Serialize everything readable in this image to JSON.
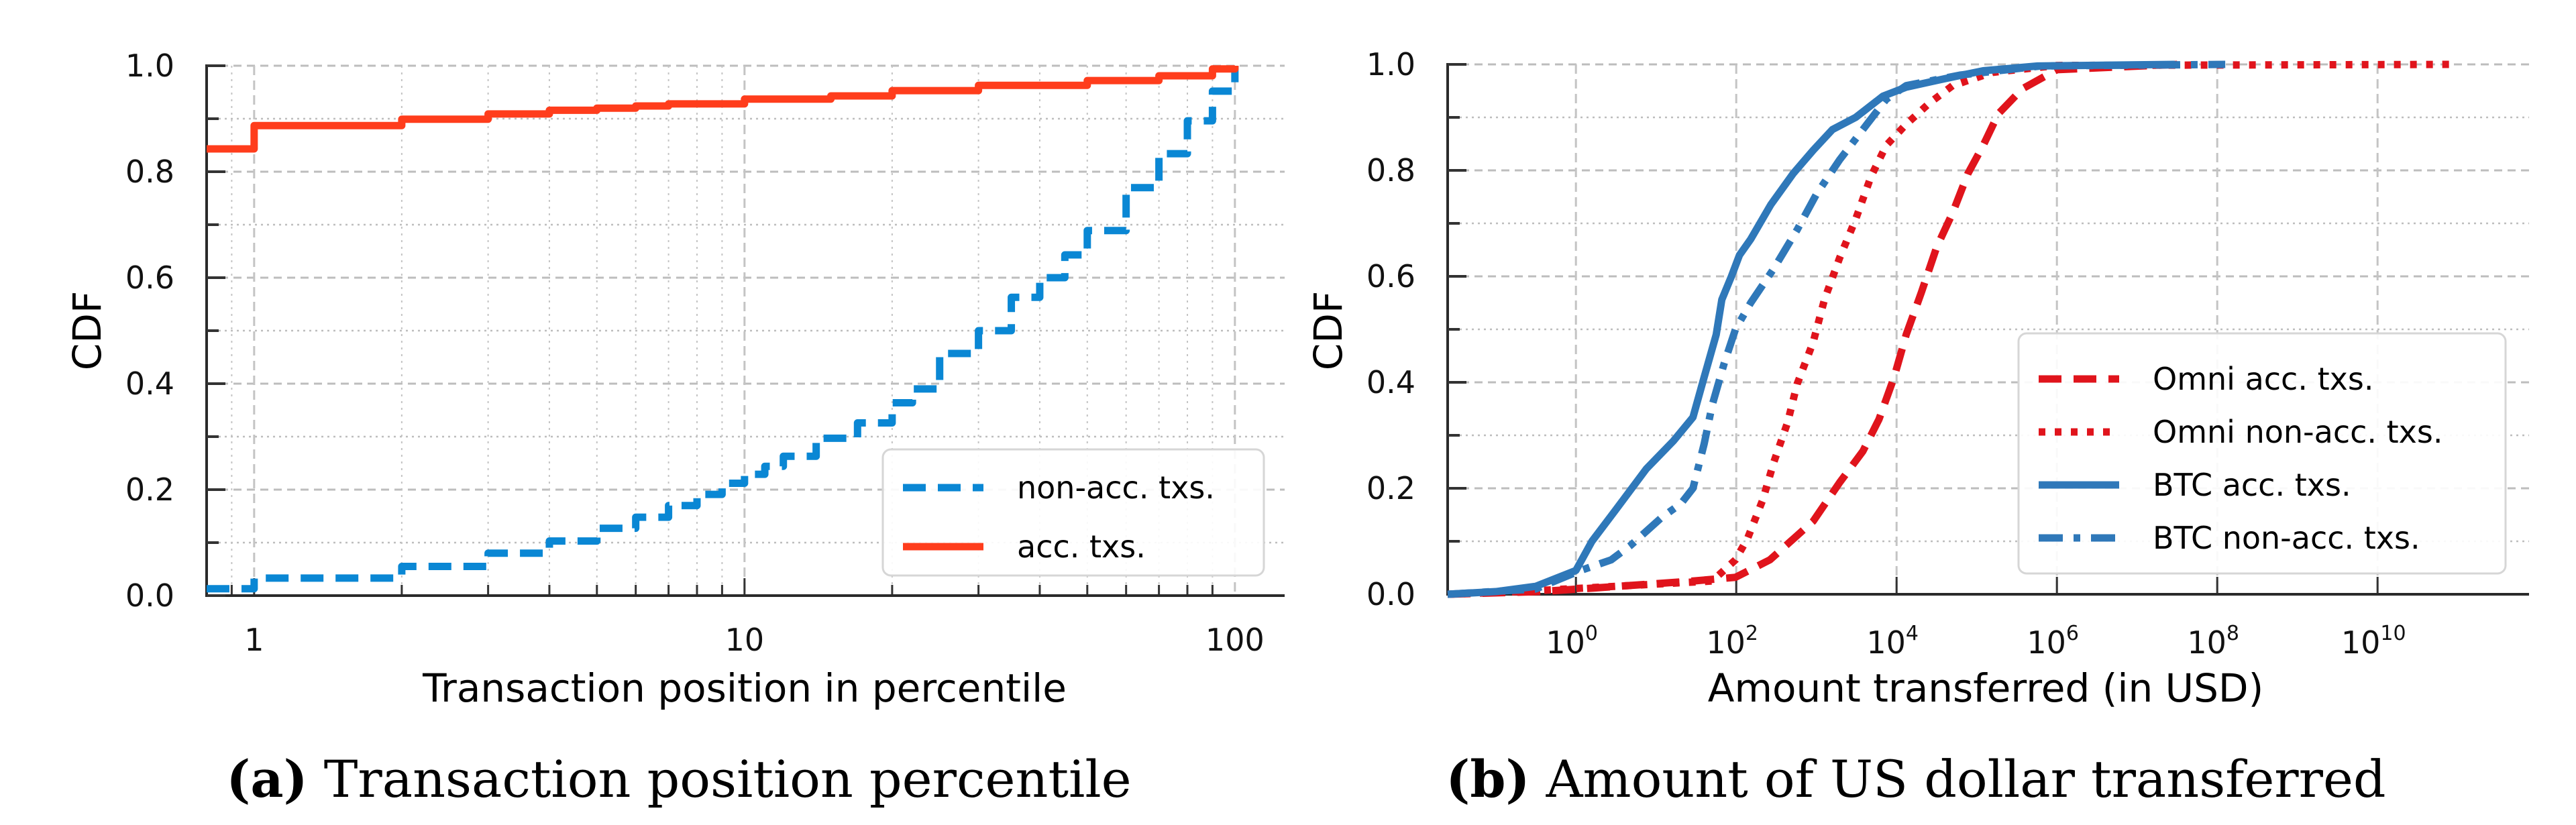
{
  "chart_data": [
    {
      "id": "a",
      "type": "line",
      "caption_tag": "(a)",
      "caption": "Transaction position percentile",
      "xlabel": "Transaction position in percentile",
      "ylabel": "CDF",
      "xscale": "log",
      "xlim": [
        0.8,
        120
      ],
      "ylim": [
        0.0,
        1.0
      ],
      "xticks": [
        {
          "value": 1,
          "label": "1"
        },
        {
          "value": 10,
          "label": "10"
        },
        {
          "value": 100,
          "label": "100"
        }
      ],
      "yticks": [
        {
          "value": 0.0,
          "label": "0.0"
        },
        {
          "value": 0.2,
          "label": "0.2"
        },
        {
          "value": 0.4,
          "label": "0.4"
        },
        {
          "value": 0.6,
          "label": "0.6"
        },
        {
          "value": 0.8,
          "label": "0.8"
        },
        {
          "value": 1.0,
          "label": "1.0"
        }
      ],
      "grid": true,
      "legend_position": "lower-right",
      "series": [
        {
          "name": "non-acc. txs.",
          "color": "#0a87d4",
          "style": "dashed",
          "step": true,
          "x": [
            0.8,
            1,
            2,
            3,
            4,
            5,
            6,
            7,
            8,
            9,
            10,
            11,
            12,
            14,
            17,
            20,
            22,
            25,
            30,
            35,
            40,
            45,
            50,
            60,
            70,
            80,
            90,
            100
          ],
          "y": [
            0.013,
            0.033,
            0.055,
            0.08,
            0.103,
            0.127,
            0.148,
            0.17,
            0.191,
            0.212,
            0.229,
            0.244,
            0.263,
            0.297,
            0.326,
            0.364,
            0.39,
            0.457,
            0.5,
            0.563,
            0.6,
            0.643,
            0.689,
            0.77,
            0.834,
            0.896,
            0.952,
            1.0
          ]
        },
        {
          "name": "acc. txs.",
          "color": "#ff3d1c",
          "style": "solid",
          "step": true,
          "x": [
            0.8,
            1,
            2,
            3,
            4,
            5,
            6,
            7,
            10,
            15,
            20,
            30,
            50,
            70,
            90,
            100
          ],
          "y": [
            0.843,
            0.887,
            0.899,
            0.909,
            0.916,
            0.92,
            0.924,
            0.928,
            0.937,
            0.943,
            0.953,
            0.963,
            0.972,
            0.981,
            0.994,
            1.0
          ]
        }
      ]
    },
    {
      "id": "b",
      "type": "line",
      "caption_tag": "(b)",
      "caption": "Amount of US dollar transferred",
      "xlabel": "Amount transferred (in USD)",
      "ylabel": "CDF",
      "xscale": "log",
      "xlim_log10": [
        -1.6,
        11.9
      ],
      "ylim": [
        0.0,
        1.0
      ],
      "xticks": [
        {
          "exp": 0,
          "base": "10",
          "sup": "0"
        },
        {
          "exp": 2,
          "base": "10",
          "sup": "2"
        },
        {
          "exp": 4,
          "base": "10",
          "sup": "4"
        },
        {
          "exp": 6,
          "base": "10",
          "sup": "6"
        },
        {
          "exp": 8,
          "base": "10",
          "sup": "8"
        },
        {
          "exp": 10,
          "base": "10",
          "sup": "10"
        }
      ],
      "yticks": [
        {
          "value": 0.0,
          "label": "0.0"
        },
        {
          "value": 0.2,
          "label": "0.2"
        },
        {
          "value": 0.4,
          "label": "0.4"
        },
        {
          "value": 0.6,
          "label": "0.6"
        },
        {
          "value": 0.8,
          "label": "0.8"
        },
        {
          "value": 1.0,
          "label": "1.0"
        }
      ],
      "grid": true,
      "legend_position": "lower-right",
      "series": [
        {
          "name": "Omni acc. txs.",
          "color": "#e0141c",
          "style": "dashed",
          "log10_x": [
            -1.6,
            -0.47,
            0.25,
            1.46,
            1.99,
            2.42,
            2.96,
            3.29,
            3.58,
            3.78,
            3.97,
            4.12,
            4.31,
            4.5,
            4.7,
            4.89,
            5.08,
            5.27,
            5.57,
            6.0,
            7.5
          ],
          "y": [
            0.0,
            0.005,
            0.012,
            0.025,
            0.032,
            0.065,
            0.138,
            0.211,
            0.27,
            0.33,
            0.41,
            0.49,
            0.57,
            0.655,
            0.72,
            0.794,
            0.847,
            0.907,
            0.954,
            0.99,
            1.0
          ]
        },
        {
          "name": "Omni non-acc. txs.",
          "color": "#e0141c",
          "style": "dotted",
          "log10_x": [
            -1.6,
            -0.71,
            1.7,
            1.99,
            2.14,
            2.33,
            2.47,
            2.64,
            2.76,
            2.96,
            3.1,
            3.29,
            3.49,
            3.68,
            3.87,
            4.12,
            4.41,
            4.7,
            5.2,
            6.0,
            11.0
          ],
          "y": [
            0.0,
            0.005,
            0.025,
            0.065,
            0.105,
            0.178,
            0.25,
            0.324,
            0.397,
            0.476,
            0.556,
            0.635,
            0.708,
            0.788,
            0.847,
            0.887,
            0.927,
            0.96,
            0.985,
            0.998,
            1.0
          ]
        },
        {
          "name": "BTC acc. txs.",
          "color": "#2f78b9",
          "style": "solid",
          "log10_x": [
            -1.6,
            -1.0,
            -0.5,
            0.0,
            0.2,
            0.5,
            0.88,
            1.22,
            1.46,
            1.6,
            1.75,
            1.82,
            1.94,
            2.04,
            2.18,
            2.43,
            2.71,
            2.96,
            3.2,
            3.49,
            3.83,
            4.12,
            4.6,
            5.08,
            5.76,
            7.47
          ],
          "y": [
            0.0,
            0.005,
            0.015,
            0.045,
            0.1,
            0.16,
            0.237,
            0.29,
            0.334,
            0.41,
            0.49,
            0.556,
            0.6,
            0.64,
            0.67,
            0.735,
            0.794,
            0.838,
            0.877,
            0.9,
            0.94,
            0.957,
            0.973,
            0.988,
            0.997,
            1.0
          ]
        },
        {
          "name": "BTC non-acc. txs.",
          "color": "#2f78b9",
          "style": "dashdot",
          "log10_x": [
            -1.6,
            -0.5,
            0.06,
            0.44,
            0.68,
            1.07,
            1.31,
            1.46,
            1.6,
            1.7,
            1.85,
            1.99,
            2.18,
            2.47,
            2.76,
            3.0,
            3.29,
            3.63,
            3.87,
            4.12,
            4.8,
            5.8,
            8.1
          ],
          "y": [
            0.0,
            0.01,
            0.045,
            0.065,
            0.092,
            0.145,
            0.171,
            0.2,
            0.284,
            0.357,
            0.436,
            0.5,
            0.55,
            0.615,
            0.688,
            0.755,
            0.82,
            0.887,
            0.934,
            0.96,
            0.98,
            0.997,
            1.0
          ]
        }
      ]
    }
  ]
}
